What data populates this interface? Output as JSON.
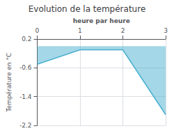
{
  "chart_data": {
    "type": "area",
    "title": "Evolution de la température",
    "xlabel": "heure par heure",
    "ylabel": "Température en °C",
    "x": [
      0,
      1,
      2,
      3
    ],
    "values": [
      -0.5,
      -0.1,
      -0.1,
      -1.9
    ],
    "xlim": [
      0,
      3
    ],
    "ylim": [
      -2.2,
      0.2
    ],
    "xticks": [
      0,
      1,
      2,
      3
    ],
    "yticks": [
      0.2,
      -0.6,
      -1.4,
      -2.2
    ],
    "color": "#4ab0d0",
    "grid": true
  }
}
